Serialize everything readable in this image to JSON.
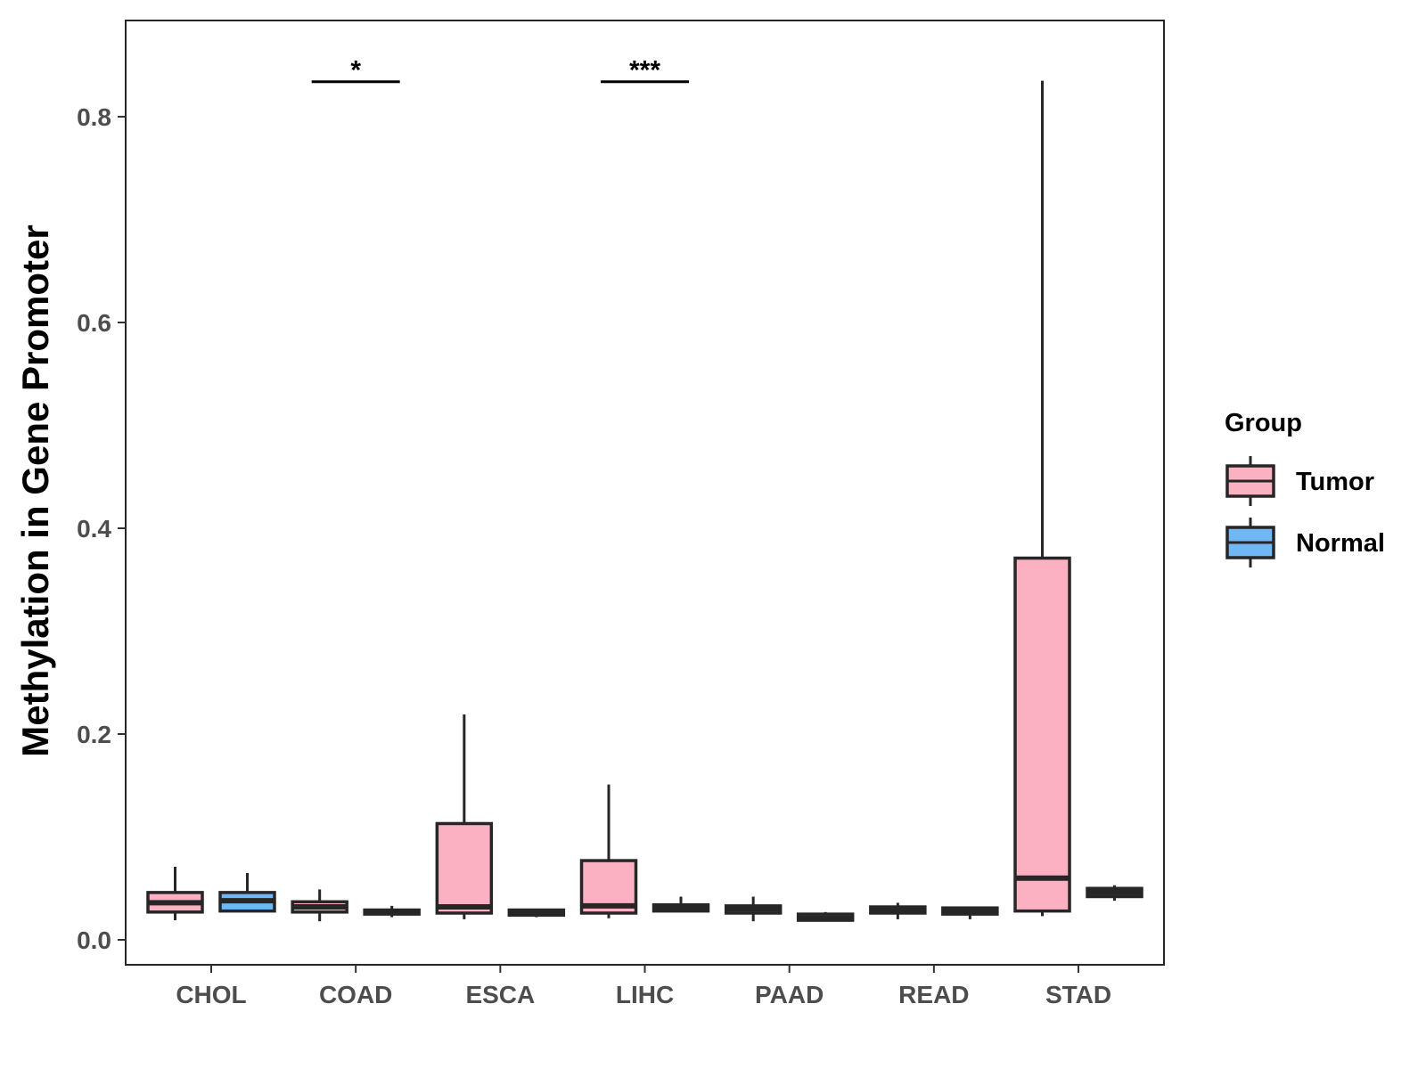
{
  "chart_data": {
    "type": "boxplot",
    "title": "",
    "xlabel": "",
    "ylabel": "Methylation in Gene Promoter",
    "ylim": [
      -0.012,
      0.895
    ],
    "yticks": [
      0.0,
      0.2,
      0.4,
      0.6,
      0.8
    ],
    "ytick_labels": [
      "0.0",
      "0.2",
      "0.4",
      "0.6",
      "0.8"
    ],
    "grid": false,
    "categories": [
      "CHOL",
      "COAD",
      "ESCA",
      "LIHC",
      "PAAD",
      "READ",
      "STAD"
    ],
    "legend": {
      "title": "Group",
      "position": "right",
      "entries": [
        {
          "name": "Tumor",
          "color": "#fbb1c2"
        },
        {
          "name": "Normal",
          "color": "#6fb8f5"
        }
      ]
    },
    "series": [
      {
        "name": "Tumor",
        "color": "#fbb1c2",
        "boxes": [
          {
            "category": "CHOL",
            "min": 0.019,
            "q1": 0.027,
            "median": 0.036,
            "q3": 0.046,
            "max": 0.071
          },
          {
            "category": "COAD",
            "min": 0.018,
            "q1": 0.027,
            "median": 0.032,
            "q3": 0.037,
            "max": 0.049
          },
          {
            "category": "ESCA",
            "min": 0.02,
            "q1": 0.026,
            "median": 0.032,
            "q3": 0.113,
            "max": 0.219
          },
          {
            "category": "LIHC",
            "min": 0.021,
            "q1": 0.026,
            "median": 0.033,
            "q3": 0.077,
            "max": 0.151
          },
          {
            "category": "PAAD",
            "min": 0.018,
            "q1": 0.026,
            "median": 0.03,
            "q3": 0.033,
            "max": 0.042
          },
          {
            "category": "READ",
            "min": 0.02,
            "q1": 0.026,
            "median": 0.029,
            "q3": 0.032,
            "max": 0.036
          },
          {
            "category": "STAD",
            "min": 0.023,
            "q1": 0.028,
            "median": 0.06,
            "q3": 0.371,
            "max": 0.835
          }
        ]
      },
      {
        "name": "Normal",
        "color": "#6fb8f5",
        "boxes": [
          {
            "category": "CHOL",
            "min": 0.027,
            "q1": 0.028,
            "median": 0.038,
            "q3": 0.046,
            "max": 0.065
          },
          {
            "category": "COAD",
            "min": 0.022,
            "q1": 0.025,
            "median": 0.027,
            "q3": 0.029,
            "max": 0.033
          },
          {
            "category": "ESCA",
            "min": 0.022,
            "q1": 0.024,
            "median": 0.026,
            "q3": 0.029,
            "max": 0.03
          },
          {
            "category": "LIHC",
            "min": 0.027,
            "q1": 0.028,
            "median": 0.031,
            "q3": 0.034,
            "max": 0.042
          },
          {
            "category": "PAAD",
            "min": 0.018,
            "q1": 0.019,
            "median": 0.021,
            "q3": 0.025,
            "max": 0.027
          },
          {
            "category": "READ",
            "min": 0.02,
            "q1": 0.025,
            "median": 0.029,
            "q3": 0.031,
            "max": 0.032
          },
          {
            "category": "STAD",
            "min": 0.038,
            "q1": 0.042,
            "median": 0.046,
            "q3": 0.05,
            "max": 0.053
          }
        ]
      }
    ],
    "annotations": [
      {
        "category": "COAD",
        "label": "*",
        "y": 0.834
      },
      {
        "category": "LIHC",
        "label": "***",
        "y": 0.834
      }
    ]
  }
}
